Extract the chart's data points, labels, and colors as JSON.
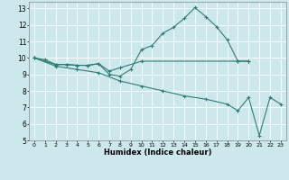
{
  "xlabel": "Humidex (Indice chaleur)",
  "xlim": [
    -0.5,
    23.5
  ],
  "ylim": [
    5,
    13.4
  ],
  "yticks": [
    5,
    6,
    7,
    8,
    9,
    10,
    11,
    12,
    13
  ],
  "xticks": [
    0,
    1,
    2,
    3,
    4,
    5,
    6,
    7,
    8,
    9,
    10,
    11,
    12,
    13,
    14,
    15,
    16,
    17,
    18,
    19,
    20,
    21,
    22,
    23
  ],
  "bg_color": "#cde8ec",
  "grid_color": "#ffffff",
  "line_color": "#2e7d72",
  "line1_x": [
    0,
    1,
    2,
    3,
    4,
    5,
    6,
    7,
    8,
    9,
    10,
    11,
    12,
    13,
    14,
    15,
    16,
    17,
    18,
    19,
    20
  ],
  "line1_y": [
    10.0,
    9.9,
    9.6,
    9.6,
    9.55,
    9.55,
    9.65,
    9.0,
    8.9,
    9.3,
    10.5,
    10.75,
    11.5,
    11.85,
    12.4,
    13.05,
    12.5,
    11.9,
    11.1,
    9.8,
    9.8
  ],
  "line2_x": [
    0,
    2,
    3,
    4,
    5,
    6,
    7,
    8,
    10,
    19,
    20
  ],
  "line2_y": [
    10.0,
    9.6,
    9.6,
    9.55,
    9.55,
    9.65,
    9.2,
    9.4,
    9.8,
    9.8,
    9.8
  ],
  "line3_x": [
    0,
    2,
    4,
    6,
    8,
    10,
    12,
    14,
    16,
    18,
    19,
    20,
    21,
    22,
    23
  ],
  "line3_y": [
    10.0,
    9.5,
    9.3,
    9.1,
    8.6,
    8.3,
    8.0,
    7.7,
    7.5,
    7.2,
    6.8,
    7.6,
    5.3,
    7.6,
    7.2
  ]
}
